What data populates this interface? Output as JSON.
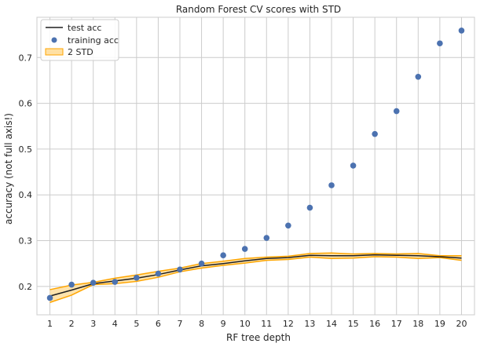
{
  "chart_data": {
    "type": "line",
    "title": "Random Forest CV scores with STD",
    "xlabel": "RF tree depth",
    "ylabel": "accuracy (not full axis!)",
    "x": [
      1,
      2,
      3,
      4,
      5,
      6,
      7,
      8,
      9,
      10,
      11,
      12,
      13,
      14,
      15,
      16,
      17,
      18,
      19,
      20
    ],
    "xlim": [
      0.4,
      20.6
    ],
    "ylim": [
      0.138,
      0.788
    ],
    "yticks": [
      0.2,
      0.3,
      0.4,
      0.5,
      0.6,
      0.7
    ],
    "grid": true,
    "legend_position": "top-left",
    "colors": {
      "test": "#1f1f1f",
      "training": "#4c72b0",
      "band_fill": "#ffe0a3",
      "band_edge": "#ffa500",
      "grid": "#cccccc",
      "spine": "#cccccc"
    },
    "series": [
      {
        "name": "test acc",
        "kind": "line",
        "values": [
          0.179,
          0.192,
          0.206,
          0.212,
          0.218,
          0.226,
          0.236,
          0.245,
          0.25,
          0.256,
          0.261,
          0.263,
          0.268,
          0.267,
          0.267,
          0.269,
          0.268,
          0.267,
          0.265,
          0.262
        ]
      },
      {
        "name": "training acc",
        "kind": "points",
        "values": [
          0.175,
          0.204,
          0.208,
          0.21,
          0.219,
          0.228,
          0.237,
          0.25,
          0.268,
          0.282,
          0.306,
          0.333,
          0.372,
          0.421,
          0.464,
          0.533,
          0.583,
          0.658,
          0.731,
          0.759
        ]
      },
      {
        "name": "2 STD",
        "kind": "band",
        "lower": [
          0.165,
          0.181,
          0.204,
          0.206,
          0.211,
          0.22,
          0.232,
          0.24,
          0.246,
          0.251,
          0.257,
          0.259,
          0.264,
          0.261,
          0.262,
          0.265,
          0.264,
          0.261,
          0.263,
          0.257
        ],
        "upper": [
          0.193,
          0.203,
          0.209,
          0.218,
          0.225,
          0.233,
          0.24,
          0.25,
          0.255,
          0.261,
          0.264,
          0.266,
          0.272,
          0.273,
          0.271,
          0.272,
          0.271,
          0.272,
          0.267,
          0.267
        ]
      }
    ]
  }
}
